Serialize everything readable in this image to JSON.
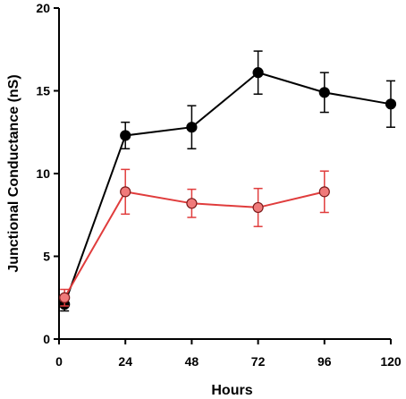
{
  "chart_data": {
    "type": "line",
    "xlabel": "Hours",
    "ylabel": "Junctional Conductance (nS)",
    "xlim": [
      0,
      120
    ],
    "ylim": [
      0,
      20
    ],
    "xticks": [
      0,
      24,
      48,
      72,
      96,
      120
    ],
    "yticks": [
      0,
      5,
      10,
      15,
      20
    ],
    "grid": false,
    "series": [
      {
        "color": "#000000",
        "marker_fill": "#000000",
        "x": [
          2,
          24,
          48,
          72,
          96,
          120
        ],
        "y": [
          2.1,
          12.3,
          12.8,
          16.1,
          14.9,
          14.2
        ],
        "err": [
          0.4,
          0.8,
          1.3,
          1.3,
          1.2,
          1.4
        ]
      },
      {
        "color": "#e03c3c",
        "marker_fill": "#f07a7a",
        "x": [
          2,
          24,
          48,
          72,
          96
        ],
        "y": [
          2.5,
          8.9,
          8.2,
          7.95,
          8.9
        ],
        "err": [
          0.5,
          1.35,
          0.85,
          1.15,
          1.25
        ]
      }
    ]
  }
}
